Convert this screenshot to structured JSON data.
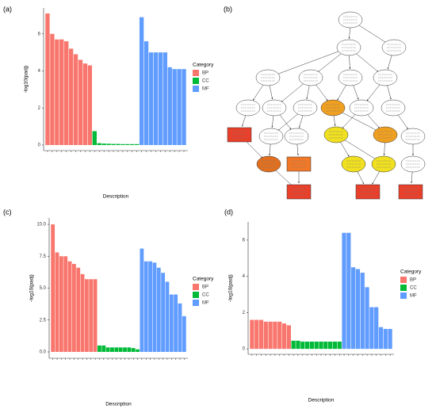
{
  "chart_data": [
    {
      "type": "bar",
      "panel": "(a)",
      "ylabel": "-log10(padj)",
      "xlabel": "Description",
      "legend_title": "Category",
      "ylim": [
        -0.3,
        7.4
      ],
      "yticks": [
        0,
        2,
        4,
        6
      ],
      "series": [
        {
          "name": "BP",
          "color": "#F8766D",
          "values": [
            7.1,
            6.0,
            5.7,
            5.7,
            5.6,
            5.2,
            4.9,
            4.6,
            4.4,
            4.3
          ]
        },
        {
          "name": "CC",
          "color": "#00BA38",
          "values": [
            0.75,
            0.1,
            0.08,
            0.07,
            0.06,
            0.06,
            0.05,
            0.05,
            0.05,
            0.05
          ]
        },
        {
          "name": "MF",
          "color": "#619CFF",
          "values": [
            6.9,
            5.6,
            5.0,
            5.0,
            5.0,
            5.0,
            4.2,
            4.1,
            4.1,
            4.1
          ]
        }
      ]
    },
    {
      "type": "bar",
      "panel": "(c)",
      "ylabel": "-log10(padj)",
      "xlabel": "Description",
      "legend_title": "Category",
      "ylim": [
        -0.5,
        10.5
      ],
      "yticks": [
        {
          "value": 0,
          "label": "0.0"
        },
        {
          "value": 2.5,
          "label": "2.5"
        },
        {
          "value": 5,
          "label": "5.0"
        },
        {
          "value": 7.5,
          "label": "7.5"
        },
        {
          "value": 10,
          "label": "10.0"
        }
      ],
      "series": [
        {
          "name": "BP",
          "color": "#F8766D",
          "values": [
            10.0,
            7.8,
            7.5,
            7.5,
            7.1,
            6.9,
            6.6,
            6.1,
            5.7,
            5.7,
            5.7
          ]
        },
        {
          "name": "CC",
          "color": "#00BA38",
          "values": [
            0.5,
            0.5,
            0.35,
            0.35,
            0.35,
            0.35,
            0.35,
            0.35,
            0.3,
            0.2
          ]
        },
        {
          "name": "MF",
          "color": "#619CFF",
          "values": [
            8.1,
            7.1,
            7.1,
            7.0,
            6.6,
            6.2,
            5.5,
            4.5,
            4.5,
            3.8,
            2.8
          ]
        }
      ]
    },
    {
      "type": "bar",
      "panel": "(d)",
      "ylabel": "-log10(padj)",
      "xlabel": "Description",
      "legend_title": "Category",
      "ylim": [
        -0.3,
        7.0
      ],
      "yticks": [
        0,
        2,
        4,
        6
      ],
      "series": [
        {
          "name": "BP",
          "color": "#F8766D",
          "values": [
            1.6,
            1.6,
            1.6,
            1.5,
            1.5,
            1.5,
            1.5,
            1.4,
            1.3
          ]
        },
        {
          "name": "CC",
          "color": "#00BA38",
          "values": [
            0.45,
            0.45,
            0.4,
            0.4,
            0.4,
            0.4,
            0.4,
            0.4,
            0.4,
            0.4,
            0.4
          ]
        },
        {
          "name": "MF",
          "color": "#619CFF",
          "values": [
            6.4,
            6.4,
            4.5,
            4.4,
            4.2,
            3.4,
            2.3,
            2.3,
            1.2,
            1.1,
            1.1
          ]
        }
      ]
    }
  ],
  "diagram": {
    "panel": "(b)"
  }
}
